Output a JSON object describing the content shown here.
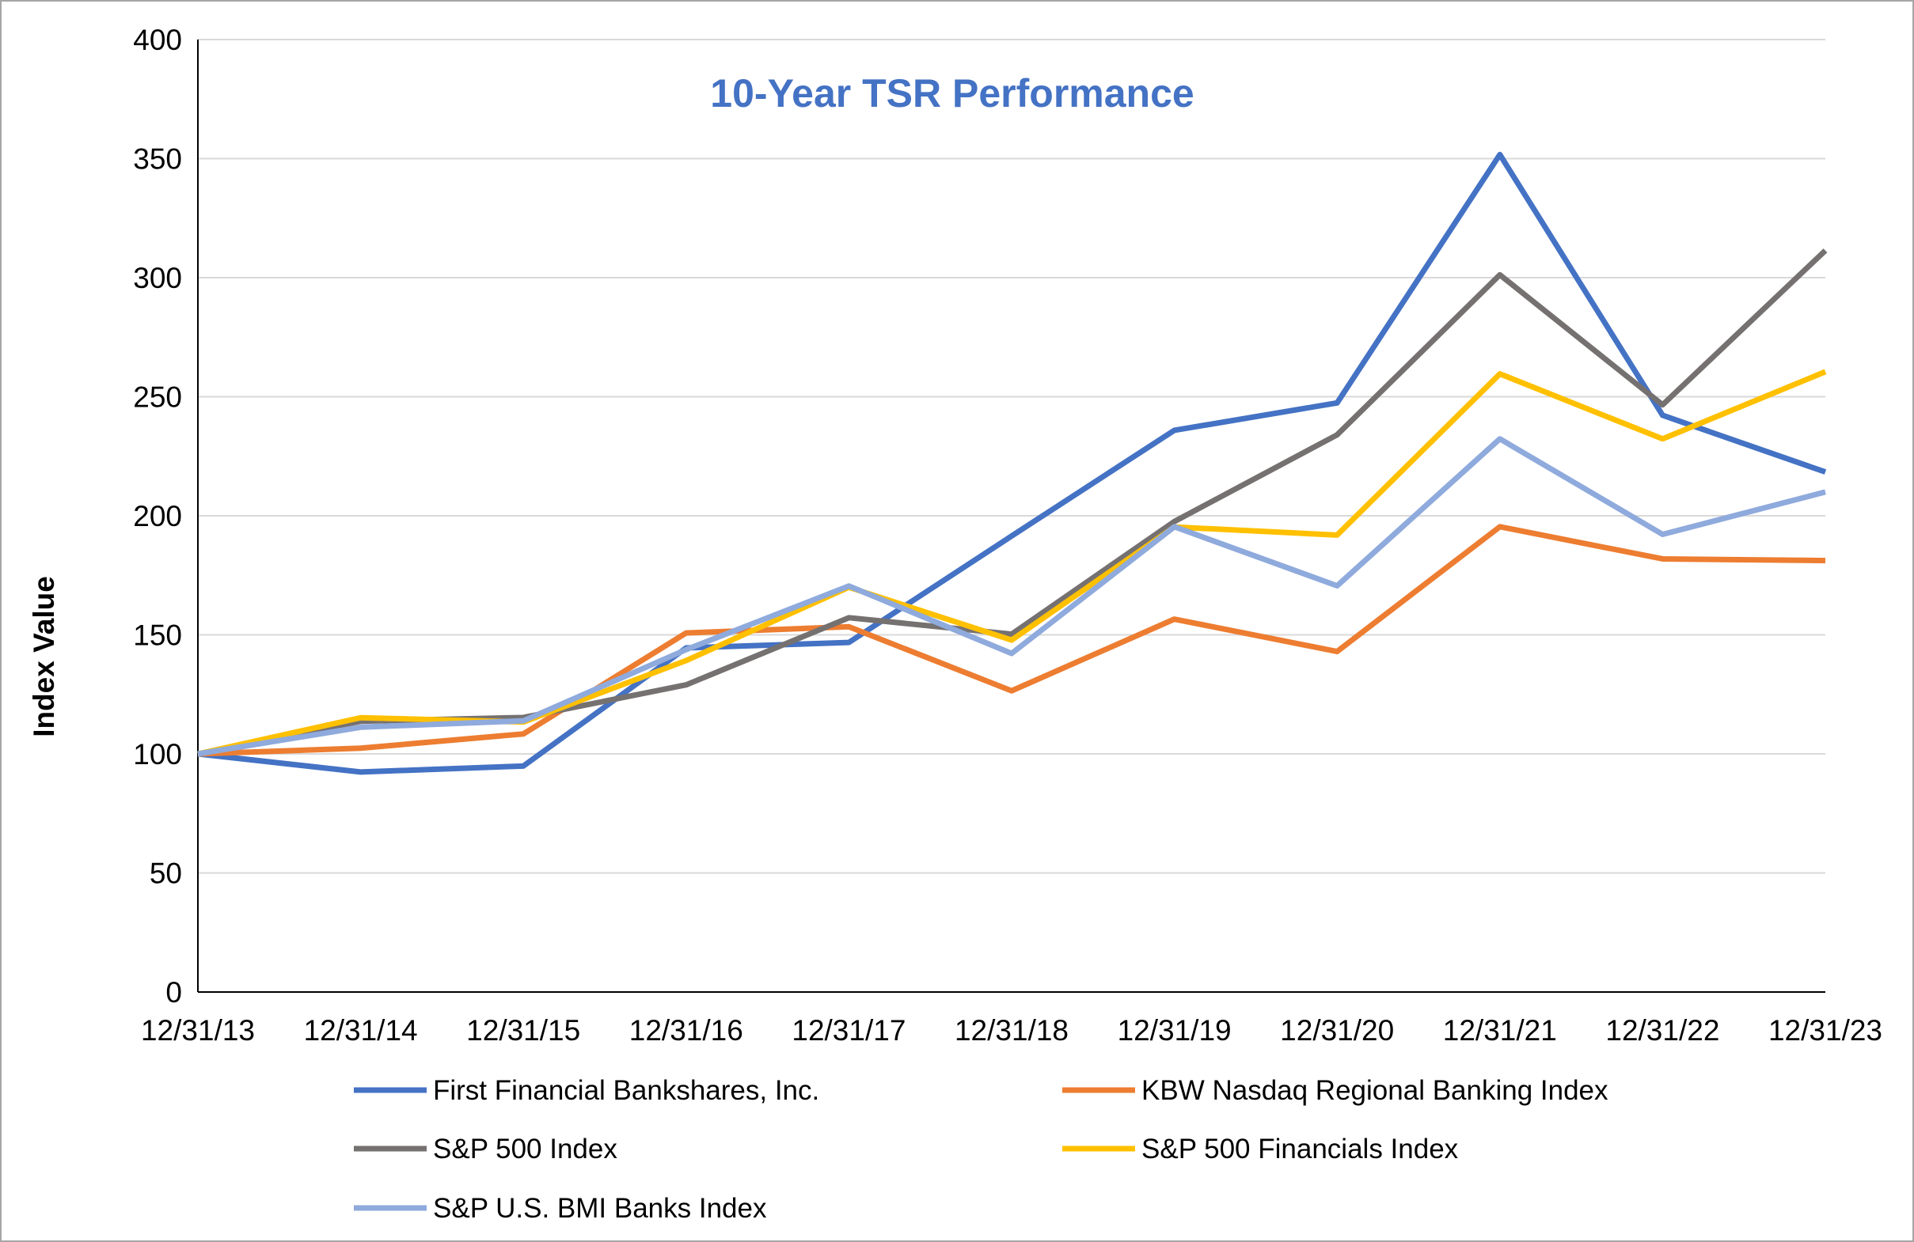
{
  "chart_data": {
    "type": "line",
    "title": "10-Year TSR Performance",
    "title_color": "#4472C4",
    "xlabel": "",
    "ylabel": "Index Value",
    "categories": [
      "12/31/13",
      "12/31/14",
      "12/31/15",
      "12/31/16",
      "12/31/17",
      "12/31/18",
      "12/31/19",
      "12/31/20",
      "12/31/21",
      "12/31/22",
      "12/31/23"
    ],
    "ylim": [
      0,
      400
    ],
    "yticks": [
      0,
      50,
      100,
      150,
      200,
      250,
      300,
      350,
      400
    ],
    "grid": true,
    "legend_position": "bottom",
    "series": [
      {
        "name": "First Financial Bankshares, Inc.",
        "color": "#4472C4",
        "values": [
          100,
          92.4,
          94.9,
          144.5,
          146.8,
          191.5,
          235.9,
          247.4,
          351.7,
          242.2,
          218.4
        ]
      },
      {
        "name": "KBW Nasdaq Regional Banking Index",
        "color": "#ED7D31",
        "values": [
          100,
          102.4,
          108.4,
          150.8,
          153.4,
          126.5,
          156.6,
          143.0,
          195.4,
          181.9,
          181.2
        ]
      },
      {
        "name": "S&P 500 Index",
        "color": "#757171",
        "values": [
          100,
          113.7,
          115.3,
          129.0,
          157.2,
          150.3,
          197.6,
          234.0,
          301.2,
          246.6,
          311.4
        ]
      },
      {
        "name": "S&P 500 Financials Index",
        "color": "#FFC000",
        "values": [
          100,
          115.2,
          113.4,
          139.2,
          170.0,
          147.8,
          195.3,
          191.9,
          259.6,
          232.3,
          260.5
        ]
      },
      {
        "name": "S&P U.S. BMI Banks Index",
        "color": "#8FAADC",
        "values": [
          100,
          111.2,
          113.9,
          143.8,
          170.5,
          142.2,
          195.4,
          170.6,
          232.3,
          192.2,
          210.0
        ]
      }
    ]
  }
}
